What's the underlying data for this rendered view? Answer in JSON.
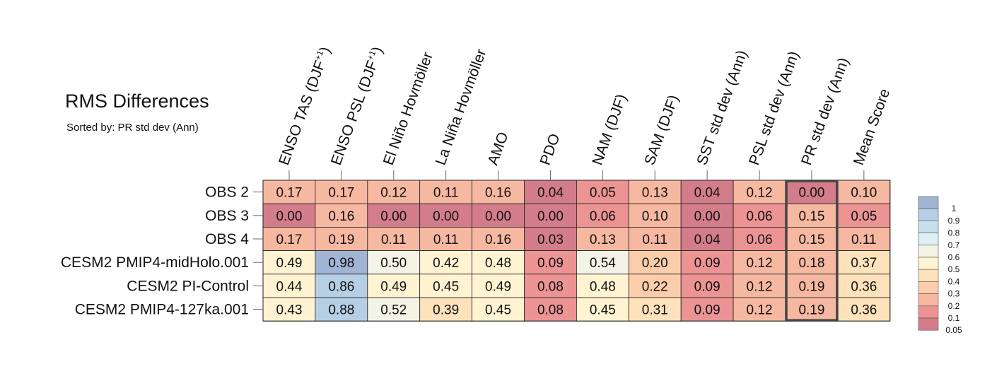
{
  "chart_data": {
    "type": "heatmap",
    "title": "RMS Differences",
    "subtitle": "Sorted by: PR std dev (Ann)",
    "columns": [
      {
        "label": "ENSO TAS (DJF",
        "sup": "+1",
        "close": ")"
      },
      {
        "label": "ENSO PSL (DJF",
        "sup": "+1",
        "close": ")"
      },
      {
        "label": "El Niño Hovmöller",
        "sup": "",
        "close": ""
      },
      {
        "label": "La Niña Hovmöller",
        "sup": "",
        "close": ""
      },
      {
        "label": "AMO",
        "sup": "",
        "close": ""
      },
      {
        "label": "PDO",
        "sup": "",
        "close": ""
      },
      {
        "label": "NAM (DJF)",
        "sup": "",
        "close": ""
      },
      {
        "label": "SAM (DJF)",
        "sup": "",
        "close": ""
      },
      {
        "label": "SST std dev (Ann)",
        "sup": "",
        "close": ""
      },
      {
        "label": "PSL std dev (Ann)",
        "sup": "",
        "close": ""
      },
      {
        "label": "PR std dev (Ann)",
        "sup": "",
        "close": ""
      },
      {
        "label": "Mean Score",
        "sup": "",
        "close": ""
      }
    ],
    "rows": [
      "OBS 2",
      "OBS 3",
      "OBS 4",
      "CESM2 PMIP4-midHolo.001",
      "CESM2 PI-Control",
      "CESM2 PMIP4-127ka.001"
    ],
    "values": [
      [
        "0.17",
        "0.17",
        "0.12",
        "0.11",
        "0.16",
        "0.04",
        "0.05",
        "0.13",
        "0.04",
        "0.12",
        "0.00",
        "0.10"
      ],
      [
        "0.00",
        "0.16",
        "0.00",
        "0.00",
        "0.00",
        "0.00",
        "0.06",
        "0.10",
        "0.00",
        "0.06",
        "0.15",
        "0.05"
      ],
      [
        "0.17",
        "0.19",
        "0.11",
        "0.11",
        "0.16",
        "0.03",
        "0.13",
        "0.11",
        "0.04",
        "0.06",
        "0.15",
        "0.11"
      ],
      [
        "0.49",
        "0.98",
        "0.50",
        "0.42",
        "0.48",
        "0.09",
        "0.54",
        "0.20",
        "0.09",
        "0.12",
        "0.18",
        "0.37"
      ],
      [
        "0.44",
        "0.86",
        "0.49",
        "0.45",
        "0.49",
        "0.08",
        "0.48",
        "0.22",
        "0.09",
        "0.12",
        "0.19",
        "0.36"
      ],
      [
        "0.43",
        "0.88",
        "0.52",
        "0.39",
        "0.45",
        "0.08",
        "0.45",
        "0.31",
        "0.09",
        "0.12",
        "0.19",
        "0.36"
      ]
    ],
    "highlight_column": 10,
    "colorbar": {
      "labels": [
        "1",
        "0.9",
        "0.8",
        "0.7",
        "0.6",
        "0.5",
        "0.4",
        "0.3",
        "0.2",
        "0.1",
        "0.05"
      ],
      "colors": [
        "#a2b4d4",
        "#b6cfe4",
        "#c6e0ec",
        "#dff0f5",
        "#f4f4e6",
        "#fff3d2",
        "#fde2bb",
        "#fbcdaa",
        "#f6b8a1",
        "#ec9394",
        "#d47d8a"
      ]
    }
  }
}
